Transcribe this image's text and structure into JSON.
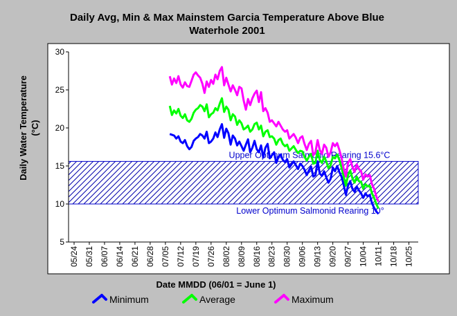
{
  "chart_data": {
    "type": "line",
    "title_line1": "Daily Avg, Min & Max Mainstem Garcia Temperature Above Blue",
    "title_line2": "Waterhole 2001",
    "xlabel": "Date MMDD (06/01 = June 1)",
    "ylabel_line1": "Daily Water Temperature",
    "ylabel_line2": "(°C)",
    "ylim": [
      5,
      30
    ],
    "yticks": [
      5,
      10,
      15,
      20,
      25,
      30
    ],
    "x_tick_labels": [
      "05/24",
      "05/31",
      "06/07",
      "06/14",
      "06/21",
      "06/28",
      "07/05",
      "07/12",
      "07/19",
      "07/26",
      "08/02",
      "08/09",
      "08/16",
      "08/23",
      "08/30",
      "09/06",
      "09/13",
      "09/20",
      "09/27",
      "10/04",
      "10/11",
      "10/18",
      "10/25"
    ],
    "grid": false,
    "legend_position": "bottom",
    "optimum_band": {
      "lower": 10,
      "upper": 15.6,
      "upper_label": "Upper Optimum Salmonid Rearing 15.6°C",
      "lower_label": "Lower Optimum Salmonid Rearing 10°"
    },
    "x_start_day": 44,
    "series": [
      {
        "name": "Minimum",
        "color": "#0000ff",
        "values": [
          19.2,
          19.1,
          19.0,
          18.6,
          18.9,
          18.2,
          18.0,
          18.4,
          17.6,
          17.2,
          17.5,
          18.3,
          18.6,
          18.8,
          19.2,
          19.0,
          18.6,
          19.5,
          18.0,
          18.2,
          18.6,
          19.4,
          18.8,
          19.8,
          20.5,
          18.7,
          19.9,
          19.3,
          17.8,
          19.0,
          18.6,
          17.7,
          18.2,
          17.6,
          17.0,
          17.8,
          18.5,
          16.8,
          17.4,
          18.3,
          17.2,
          16.8,
          17.7,
          16.1,
          17.4,
          17.9,
          16.0,
          16.4,
          16.8,
          15.4,
          16.2,
          16.5,
          15.8,
          15.5,
          15.9,
          14.8,
          15.2,
          15.6,
          15.1,
          14.6,
          15.3,
          15.0,
          14.5,
          13.8,
          14.4,
          14.9,
          13.6,
          13.8,
          15.6,
          14.0,
          13.7,
          14.3,
          13.5,
          12.8,
          13.3,
          14.8,
          14.3,
          15.0,
          14.2,
          13.6,
          12.5,
          11.2,
          12.4,
          13.0,
          12.0,
          11.6,
          12.3,
          11.8,
          11.4,
          10.8,
          11.4,
          11.0,
          11.2,
          10.1,
          9.5,
          9.0,
          8.7
        ]
      },
      {
        "name": "Average",
        "color": "#00ff00",
        "values": [
          22.9,
          21.7,
          22.3,
          21.9,
          22.5,
          21.6,
          21.3,
          21.8,
          21.0,
          20.8,
          21.2,
          22.0,
          22.4,
          22.6,
          23.0,
          22.8,
          22.2,
          23.1,
          21.4,
          21.8,
          22.0,
          22.6,
          22.3,
          23.2,
          23.9,
          22.1,
          22.8,
          22.4,
          21.0,
          21.8,
          21.5,
          20.4,
          21.0,
          20.6,
          19.8,
          20.0,
          20.3,
          19.5,
          19.8,
          20.5,
          20.7,
          19.8,
          20.3,
          18.9,
          19.5,
          19.7,
          18.8,
          18.9,
          18.6,
          17.8,
          18.4,
          18.6,
          17.9,
          17.6,
          17.8,
          17.0,
          17.3,
          17.6,
          17.1,
          16.7,
          17.0,
          16.9,
          16.2,
          15.7,
          16.2,
          16.6,
          15.3,
          15.4,
          17.0,
          15.8,
          15.4,
          16.2,
          15.6,
          14.7,
          15.1,
          16.2,
          16.0,
          16.5,
          15.8,
          14.8,
          13.6,
          12.4,
          13.8,
          14.4,
          13.4,
          12.8,
          13.6,
          13.0,
          12.9,
          12.0,
          12.6,
          12.3,
          12.4,
          11.4,
          10.8,
          10.0,
          9.4
        ]
      },
      {
        "name": "Maximum",
        "color": "#ff00ff",
        "values": [
          26.8,
          25.7,
          26.5,
          25.9,
          26.8,
          25.7,
          25.3,
          26.0,
          25.5,
          25.4,
          26.2,
          27.0,
          27.3,
          26.9,
          26.6,
          25.8,
          24.6,
          26.1,
          25.4,
          26.3,
          25.8,
          27.0,
          26.4,
          27.5,
          28.0,
          25.6,
          26.6,
          25.7,
          24.8,
          25.6,
          25.0,
          24.3,
          25.4,
          25.2,
          23.6,
          22.4,
          23.8,
          23.0,
          23.9,
          24.5,
          24.9,
          23.4,
          24.7,
          22.2,
          22.6,
          22.0,
          20.8,
          21.0,
          20.6,
          20.2,
          20.8,
          20.3,
          19.8,
          19.5,
          19.7,
          18.6,
          18.9,
          19.2,
          18.7,
          18.0,
          18.7,
          18.9,
          17.9,
          17.1,
          17.9,
          18.3,
          16.4,
          16.8,
          18.4,
          17.1,
          16.6,
          17.8,
          17.4,
          16.2,
          16.8,
          18.0,
          17.6,
          18.0,
          17.1,
          16.1,
          14.6,
          13.6,
          15.4,
          15.9,
          14.9,
          14.2,
          15.2,
          14.6,
          14.3,
          13.2,
          13.9,
          13.6,
          13.8,
          12.6,
          12.0,
          11.0,
          10.3
        ]
      }
    ]
  }
}
